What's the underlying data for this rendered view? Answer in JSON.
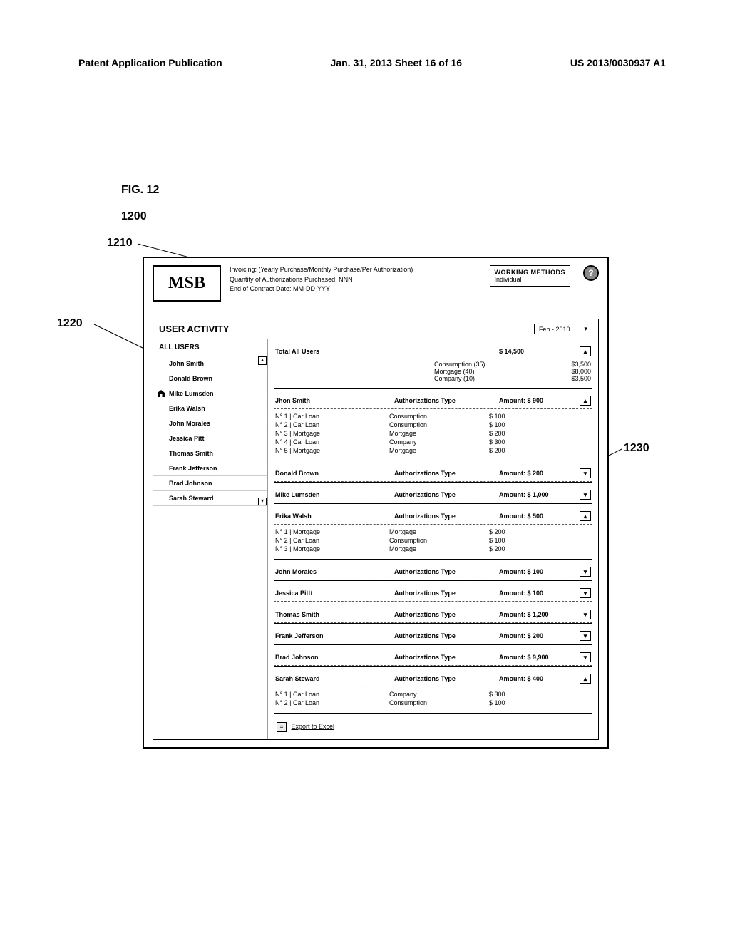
{
  "header": {
    "left": "Patent Application Publication",
    "center": "Jan. 31, 2013  Sheet 16 of 16",
    "right": "US 2013/0030937 A1"
  },
  "figure": {
    "label": "FIG. 12",
    "ref_main": "1200",
    "ref_header": "1210",
    "ref_sidebar": "1220",
    "ref_detail": "1230"
  },
  "logo": "MSB",
  "info": {
    "line1": "Invoicing: (Yearly Purchase/Monthly Purchase/Per Authorization)",
    "line2": "Quantity of Authorizations Purchased: NNN",
    "line3": "End of Contract Date: MM-DD-YYY"
  },
  "working_methods": {
    "title": "WORKING METHODS",
    "value": "Individual"
  },
  "section_title": "USER ACTIVITY",
  "date_value": "Feb - 2010",
  "all_users_label": "ALL USERS",
  "users": [
    {
      "name": "John Smith"
    },
    {
      "name": "Donald Brown"
    },
    {
      "name": "Mike Lumsden",
      "selected": true
    },
    {
      "name": "Erika Walsh"
    },
    {
      "name": "John Morales"
    },
    {
      "name": "Jessica Pitt"
    },
    {
      "name": "Thomas Smith"
    },
    {
      "name": "Frank Jefferson"
    },
    {
      "name": "Brad Johnson"
    },
    {
      "name": "Sarah Steward"
    }
  ],
  "total_card": {
    "title": "Total All Users",
    "amount": "$ 14,500",
    "lines": [
      {
        "label": "Consumption (35)",
        "value": "$3,500"
      },
      {
        "label": "Mortgage (40)",
        "value": "$8,000"
      },
      {
        "label": "Company (10)",
        "value": "$3,500"
      }
    ]
  },
  "auth_type_label": "Authorizations Type",
  "amount_prefix": "Amount:",
  "collapse_glyph": "▴",
  "expand_glyph": "▾",
  "cards": [
    {
      "name": "Jhon Smith",
      "amount": "$ 900",
      "expanded": true,
      "rows": [
        {
          "a": "N° 1  |  Car Loan",
          "b": "Consumption",
          "c": "$ 100"
        },
        {
          "a": "N° 2  |  Car Loan",
          "b": "Consumption",
          "c": "$ 100"
        },
        {
          "a": "N° 3  |  Mortgage",
          "b": "Mortgage",
          "c": "$ 200"
        },
        {
          "a": "N° 4  |  Car Loan",
          "b": "Company",
          "c": "$ 300"
        },
        {
          "a": "N° 5  |  Mortgage",
          "b": "Mortgage",
          "c": "$ 200"
        }
      ]
    },
    {
      "name": "Donald Brown",
      "amount": "$ 200",
      "expanded": false
    },
    {
      "name": "Mike Lumsden",
      "amount": "$ 1,000",
      "expanded": false
    },
    {
      "name": "Erika Walsh",
      "amount": "$ 500",
      "expanded": true,
      "rows": [
        {
          "a": "N° 1  |  Mortgage",
          "b": "Mortgage",
          "c": "$ 200"
        },
        {
          "a": "N° 2  |  Car Loan",
          "b": "Consumption",
          "c": "$ 100"
        },
        {
          "a": "N° 3  |  Mortgage",
          "b": "Mortgage",
          "c": "$ 200"
        }
      ]
    },
    {
      "name": "John Morales",
      "amount": "$ 100",
      "expanded": false
    },
    {
      "name": "Jessica Pittt",
      "amount": "$ 100",
      "expanded": false
    },
    {
      "name": "Thomas Smith",
      "amount": "$ 1,200",
      "expanded": false
    },
    {
      "name": "Frank Jefferson",
      "amount": "$ 200",
      "expanded": false
    },
    {
      "name": "Brad Johnson",
      "amount": "$ 9,900",
      "expanded": false
    },
    {
      "name": "Sarah Steward",
      "amount": "$ 400",
      "expanded": true,
      "rows": [
        {
          "a": "N° 1  |  Car Loan",
          "b": "Company",
          "c": "$ 300"
        },
        {
          "a": "N° 2  |  Car Loan",
          "b": "Consumption",
          "c": "$ 100"
        }
      ]
    }
  ],
  "export_label": "Export to Excel"
}
